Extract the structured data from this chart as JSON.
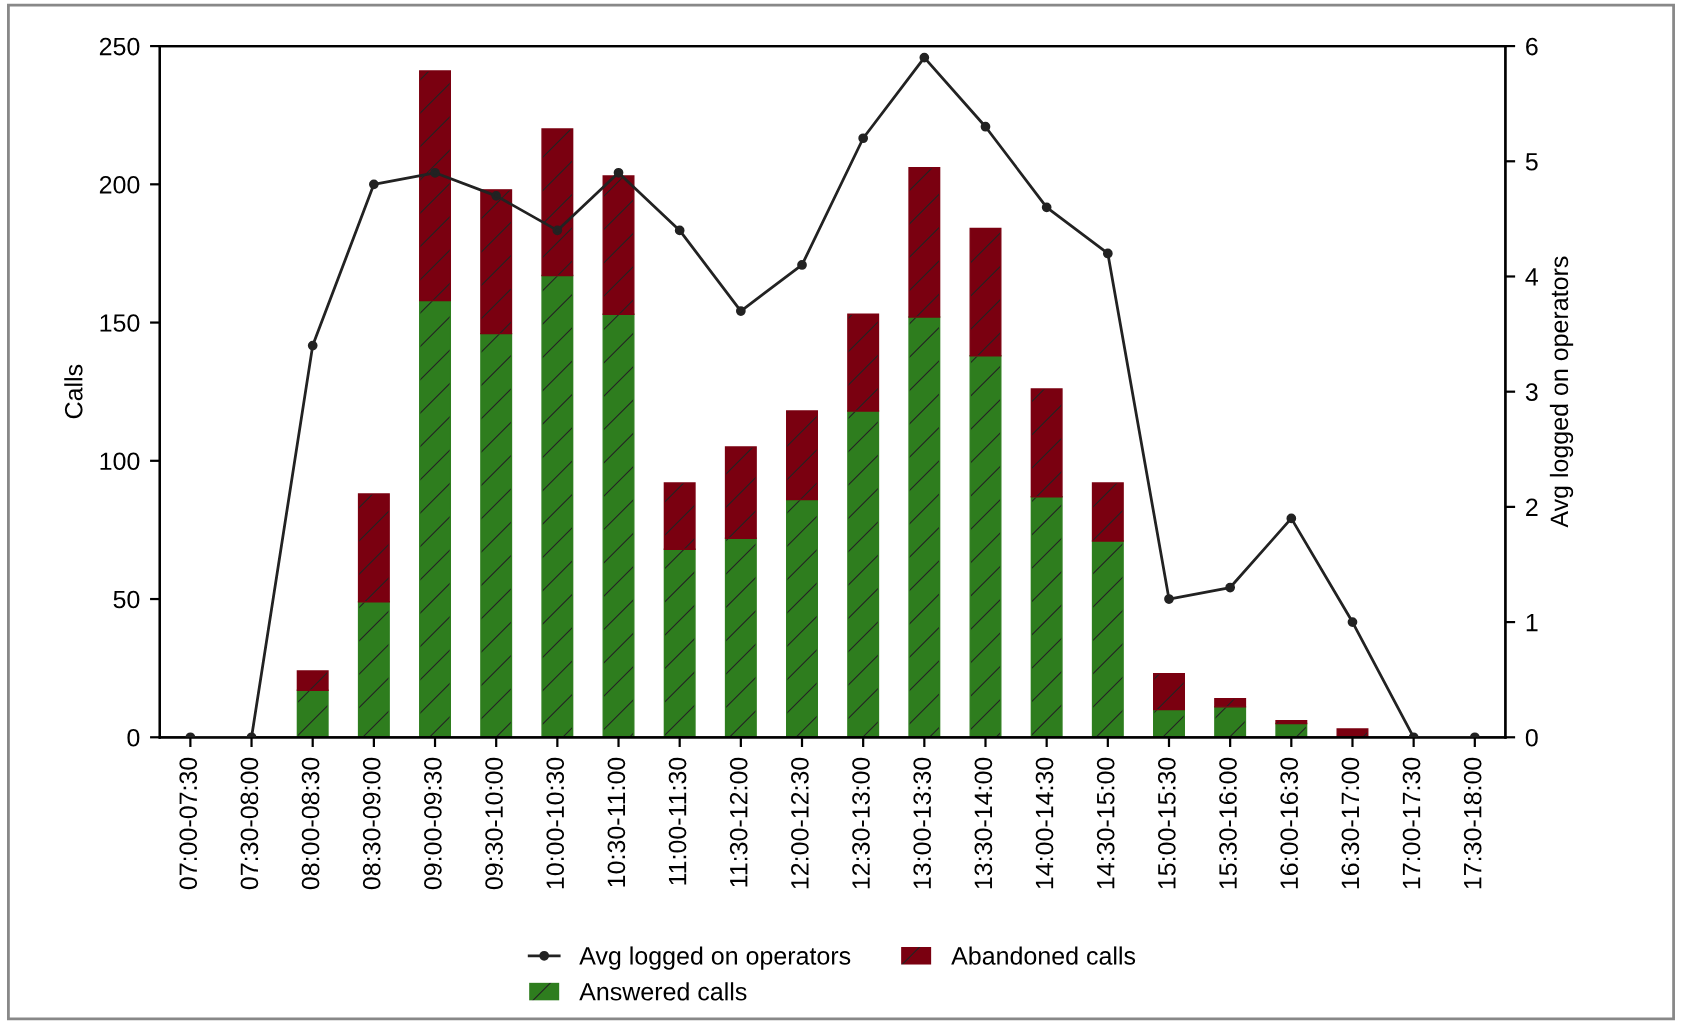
{
  "chart_data": {
    "type": "bar",
    "stacked": true,
    "ylabel": "Calls",
    "y2label": "Avg logged on operators",
    "categories": [
      "07:00-07:30",
      "07:30-08:00",
      "08:00-08:30",
      "08:30-09:00",
      "09:00-09:30",
      "09:30-10:00",
      "10:00-10:30",
      "10:30-11:00",
      "11:00-11:30",
      "11:30-12:00",
      "12:00-12:30",
      "12:30-13:00",
      "13:00-13:30",
      "13:30-14:00",
      "14:00-14:30",
      "14:30-15:00",
      "15:00-15:30",
      "15:30-16:00",
      "16:00-16:30",
      "16:30-17:00",
      "17:00-17:30",
      "17:30-18:00"
    ],
    "series": [
      {
        "name": "Answered calls",
        "color": "#2e7d1e",
        "values": [
          0,
          0,
          17,
          49,
          158,
          146,
          167,
          153,
          68,
          72,
          86,
          118,
          152,
          138,
          87,
          71,
          10,
          11,
          5,
          null,
          0,
          0
        ]
      },
      {
        "name": "Abandoned calls",
        "color": "#7a0010",
        "values": [
          0,
          0,
          7,
          39,
          83,
          52,
          53,
          50,
          24,
          33,
          32,
          35,
          54,
          46,
          39,
          21,
          13,
          3,
          1,
          3,
          0,
          0
        ]
      },
      {
        "name": "Avg logged on operators",
        "type": "line",
        "axis": "y2",
        "color": "#222222",
        "marker": "circle",
        "values": [
          0,
          0,
          3.4,
          4.8,
          4.9,
          4.7,
          4.4,
          4.9,
          4.4,
          3.7,
          4.1,
          5.2,
          5.9,
          5.3,
          4.6,
          4.2,
          1.2,
          1.3,
          1.9,
          1.0,
          0,
          0
        ]
      }
    ],
    "ylim": [
      0,
      250
    ],
    "yticks": [
      0,
      50,
      100,
      150,
      200,
      250
    ],
    "y2lim": [
      0,
      6
    ],
    "y2ticks": [
      0,
      1,
      2,
      3,
      4,
      5,
      6
    ],
    "grid": false,
    "legend": "bottom"
  }
}
